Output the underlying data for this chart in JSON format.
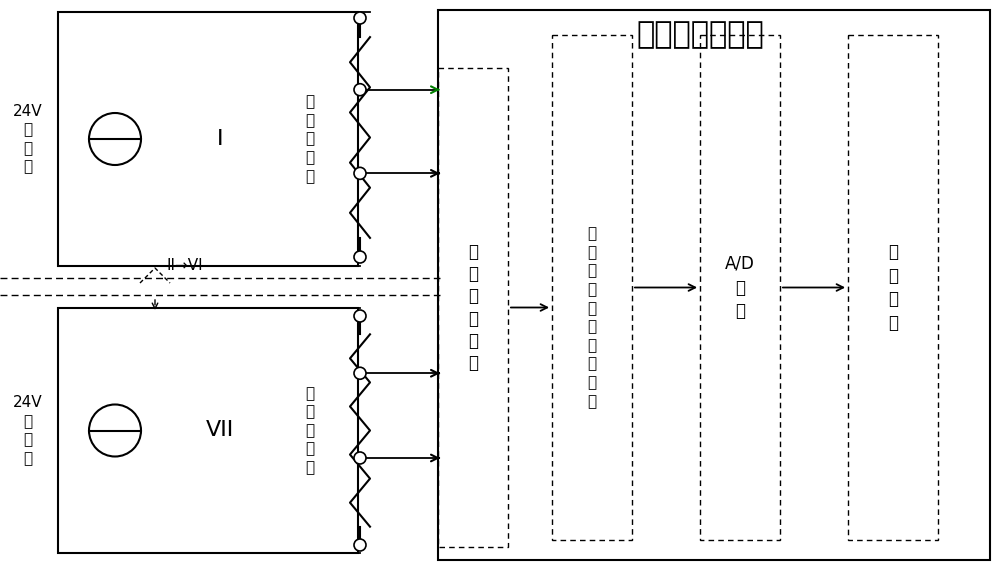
{
  "title": "信号分析记录仪",
  "bg_color": "#ffffff",
  "label_24v_1": "24V\n恒\n流\n源",
  "label_24v_2": "24V\n恒\n流\n源",
  "label_circuit1": "I",
  "label_circuit2": "VII",
  "label_resistor1": "临\n时\n热\n电\n阻",
  "label_resistor2": "临\n时\n热\n电\n阻",
  "label_signal": "信\n号\n变\n换\n电\n路",
  "label_filter": "滤\n波\n（\n信\n号\n调\n整\n电\n路\n）",
  "label_ad": "A/D\n转\n换",
  "label_monitor": "监\n测\n显\n示",
  "label_middle": "II→VI"
}
